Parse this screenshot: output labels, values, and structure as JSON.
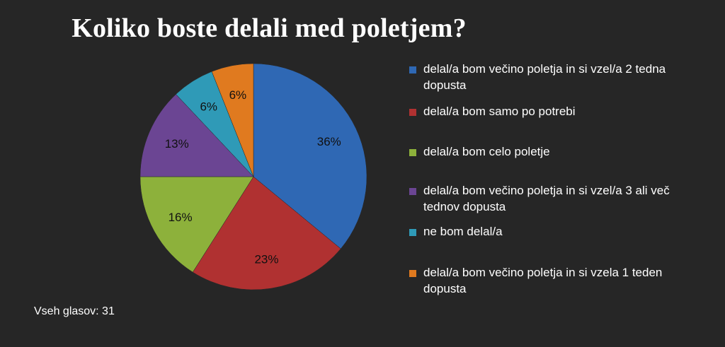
{
  "chart_data": {
    "type": "pie",
    "title": "Koliko boste delali med poletjem?",
    "slices": [
      {
        "name": "delal/a bom večino poletja in si vzel/a 2 tedna dopusta",
        "value": 36,
        "label": "36%",
        "color": "#2f68b4"
      },
      {
        "name": "delal/a bom samo po potrebi",
        "value": 23,
        "label": "23%",
        "color": "#b03131"
      },
      {
        "name": "delal/a bom celo poletje",
        "value": 16,
        "label": "16%",
        "color": "#8db13b"
      },
      {
        "name": "delal/a bom večino poletja in si vzel/a 3 ali več tednov dopusta",
        "value": 13,
        "label": "13%",
        "color": "#6b4593"
      },
      {
        "name": "ne bom delal/a",
        "value": 6,
        "label": "6%",
        "color": "#2f9ab7"
      },
      {
        "name": "delal/a bom večino poletja in si vzela 1 teden dopusta",
        "value": 6,
        "label": "6%",
        "color": "#e07a1f"
      }
    ],
    "legend_position": "right",
    "start_angle": "12 o'clock",
    "direction": "clockwise"
  },
  "footer": {
    "total_votes": "Vseh glasov: 31"
  }
}
